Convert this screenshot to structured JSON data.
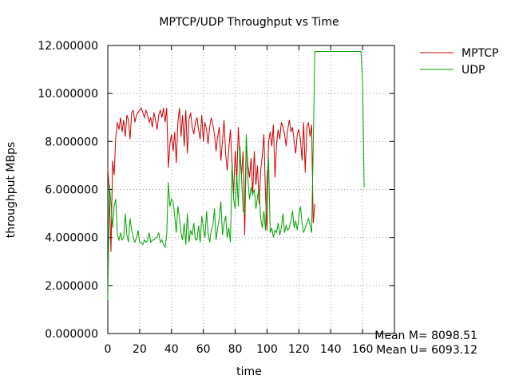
{
  "chart_data": {
    "type": "line",
    "title": "MPTCP/UDP Throughput vs Time",
    "xlabel": "time",
    "ylabel": "throughput MBps",
    "xlim": [
      0,
      180
    ],
    "ylim": [
      0,
      12
    ],
    "x_ticks": [
      0,
      20,
      40,
      60,
      80,
      100,
      120,
      140,
      160
    ],
    "x_tick_labels": [
      "0",
      "20",
      "40",
      "60",
      "80",
      "100",
      "120",
      "140",
      "160"
    ],
    "y_ticks": [
      0,
      2,
      4,
      6,
      8,
      10,
      12
    ],
    "y_tick_labels": [
      "0.000000",
      "2.000000",
      "4.000000",
      "6.000000",
      "8.000000",
      "10.000000",
      "12.000000"
    ],
    "grid": true,
    "legend_position": "top-right-outside",
    "annotations": [
      "Mean M= 8098.51",
      "Mean U= 6093.12"
    ],
    "series": [
      {
        "name": "MPTCP",
        "color": "#cc0000",
        "x": [
          0,
          1,
          2,
          3,
          4,
          5,
          6,
          7,
          8,
          9,
          10,
          11,
          12,
          13,
          14,
          15,
          16,
          17,
          18,
          19,
          20,
          21,
          22,
          23,
          24,
          25,
          26,
          27,
          28,
          29,
          30,
          31,
          32,
          33,
          34,
          35,
          36,
          37,
          38,
          39,
          40,
          41,
          42,
          43,
          44,
          45,
          46,
          47,
          48,
          49,
          50,
          51,
          52,
          53,
          54,
          55,
          56,
          57,
          58,
          59,
          60,
          61,
          62,
          63,
          64,
          65,
          66,
          67,
          68,
          69,
          70,
          71,
          72,
          73,
          74,
          75,
          76,
          77,
          78,
          79,
          80,
          81,
          82,
          83,
          84,
          85,
          86,
          87,
          88,
          89,
          90,
          91,
          92,
          93,
          94,
          95,
          96,
          97,
          98,
          99,
          100,
          101,
          102,
          103,
          104,
          105,
          106,
          107,
          108,
          109,
          110,
          111,
          112,
          113,
          114,
          115,
          116,
          117,
          118,
          119,
          120,
          121,
          122,
          123,
          124,
          125,
          126,
          127,
          128,
          129,
          130,
          135,
          140,
          145,
          150,
          155,
          159,
          160,
          161
        ],
        "y": [
          6.9,
          5.8,
          3.4,
          7.2,
          6.6,
          8.2,
          8.8,
          8.5,
          9.0,
          8.4,
          8.9,
          8.2,
          9.1,
          8.9,
          8.1,
          9.2,
          9.3,
          8.8,
          9.1,
          9.2,
          9.3,
          9.4,
          9.2,
          9.0,
          9.3,
          9.1,
          8.8,
          9.0,
          8.6,
          9.2,
          8.9,
          8.5,
          9.1,
          9.3,
          9.0,
          9.4,
          8.8,
          9.4,
          6.9,
          7.9,
          8.3,
          7.6,
          8.4,
          7.1,
          8.8,
          9.4,
          8.2,
          9.1,
          7.8,
          9.3,
          7.5,
          8.9,
          9.2,
          8.6,
          8.3,
          8.8,
          9.0,
          8.5,
          8.1,
          9.1,
          8.0,
          8.8,
          8.5,
          7.9,
          8.6,
          9.0,
          8.7,
          8.3,
          7.6,
          8.2,
          8.6,
          7.2,
          8.0,
          8.9,
          7.5,
          6.8,
          7.7,
          8.5,
          7.1,
          5.8,
          7.6,
          6.4,
          8.6,
          7.3,
          6.6,
          7.6,
          4.1,
          7.9,
          7.0,
          6.5,
          7.3,
          5.8,
          7.6,
          6.2,
          7.0,
          5.4,
          6.8,
          7.4,
          8.3,
          5.8,
          4.3,
          8.0,
          8.4,
          7.8,
          8.7,
          6.5,
          7.9,
          8.5,
          8.1,
          8.8,
          8.6,
          8.3,
          7.8,
          8.5,
          8.9,
          8.4,
          8.6,
          8.0,
          7.5,
          8.3,
          8.5,
          8.1,
          7.2,
          8.8,
          6.7,
          8.6,
          8.8,
          8.2,
          8.7,
          4.6,
          5.4,
          null,
          null,
          null,
          null,
          null,
          null,
          null,
          null
        ],
        "y_note": "ends ~127"
      },
      {
        "name": "UDP",
        "color": "#00a000",
        "x": [
          0,
          1,
          2,
          3,
          4,
          5,
          6,
          7,
          8,
          9,
          10,
          11,
          12,
          13,
          14,
          15,
          16,
          17,
          18,
          19,
          20,
          21,
          22,
          23,
          24,
          25,
          26,
          27,
          28,
          29,
          30,
          31,
          32,
          33,
          34,
          35,
          36,
          37,
          38,
          39,
          40,
          41,
          42,
          43,
          44,
          45,
          46,
          47,
          48,
          49,
          50,
          51,
          52,
          53,
          54,
          55,
          56,
          57,
          58,
          59,
          60,
          61,
          62,
          63,
          64,
          65,
          66,
          67,
          68,
          69,
          70,
          71,
          72,
          73,
          74,
          75,
          76,
          77,
          78,
          79,
          80,
          81,
          82,
          83,
          84,
          85,
          86,
          87,
          88,
          89,
          90,
          91,
          92,
          93,
          94,
          95,
          96,
          97,
          98,
          99,
          100,
          101,
          102,
          103,
          104,
          105,
          106,
          107,
          108,
          109,
          110,
          111,
          112,
          113,
          114,
          115,
          116,
          117,
          118,
          119,
          120,
          121,
          122,
          123,
          124,
          125,
          126,
          127,
          128,
          129,
          130,
          135,
          140,
          145,
          150,
          155,
          159,
          160,
          161
        ],
        "y": [
          1.4,
          6.2,
          5.4,
          4.4,
          5.3,
          5.6,
          4.1,
          3.9,
          4.2,
          3.9,
          4.0,
          5.0,
          4.1,
          3.8,
          4.8,
          4.3,
          4.0,
          3.8,
          4.0,
          4.3,
          3.8,
          3.8,
          3.7,
          3.9,
          3.8,
          3.9,
          4.2,
          3.8,
          3.9,
          3.9,
          4.0,
          4.0,
          4.2,
          3.8,
          3.9,
          3.7,
          3.6,
          4.1,
          6.3,
          5.3,
          5.6,
          5.5,
          4.9,
          4.2,
          5.3,
          4.8,
          4.2,
          3.9,
          4.6,
          3.7,
          5.0,
          3.8,
          4.3,
          4.1,
          4.6,
          3.9,
          3.9,
          4.5,
          3.8,
          4.9,
          4.4,
          4.0,
          5.1,
          4.2,
          3.8,
          4.3,
          4.5,
          5.2,
          3.9,
          4.4,
          4.8,
          5.5,
          4.1,
          4.6,
          4.9,
          4.0,
          4.4,
          3.8,
          7.1,
          5.6,
          5.2,
          6.6,
          5.3,
          7.8,
          6.5,
          5.1,
          5.0,
          8.3,
          6.4,
          5.6,
          6.1,
          5.8,
          6.0,
          5.2,
          5.7,
          6.0,
          4.8,
          4.4,
          5.1,
          4.3,
          6.5,
          7.3,
          4.2,
          4.4,
          4.0,
          4.3,
          4.2,
          4.6,
          4.1,
          4.4,
          5.0,
          4.2,
          4.5,
          4.3,
          4.4,
          4.7,
          5.1,
          4.4,
          4.7,
          4.3,
          4.9,
          5.3,
          4.6,
          4.2,
          4.4,
          4.6,
          4.8,
          4.5,
          4.2,
          7.8,
          11.75,
          11.75,
          11.75,
          11.75,
          11.75,
          11.75,
          11.75,
          10.5,
          6.1
        ]
      }
    ]
  }
}
